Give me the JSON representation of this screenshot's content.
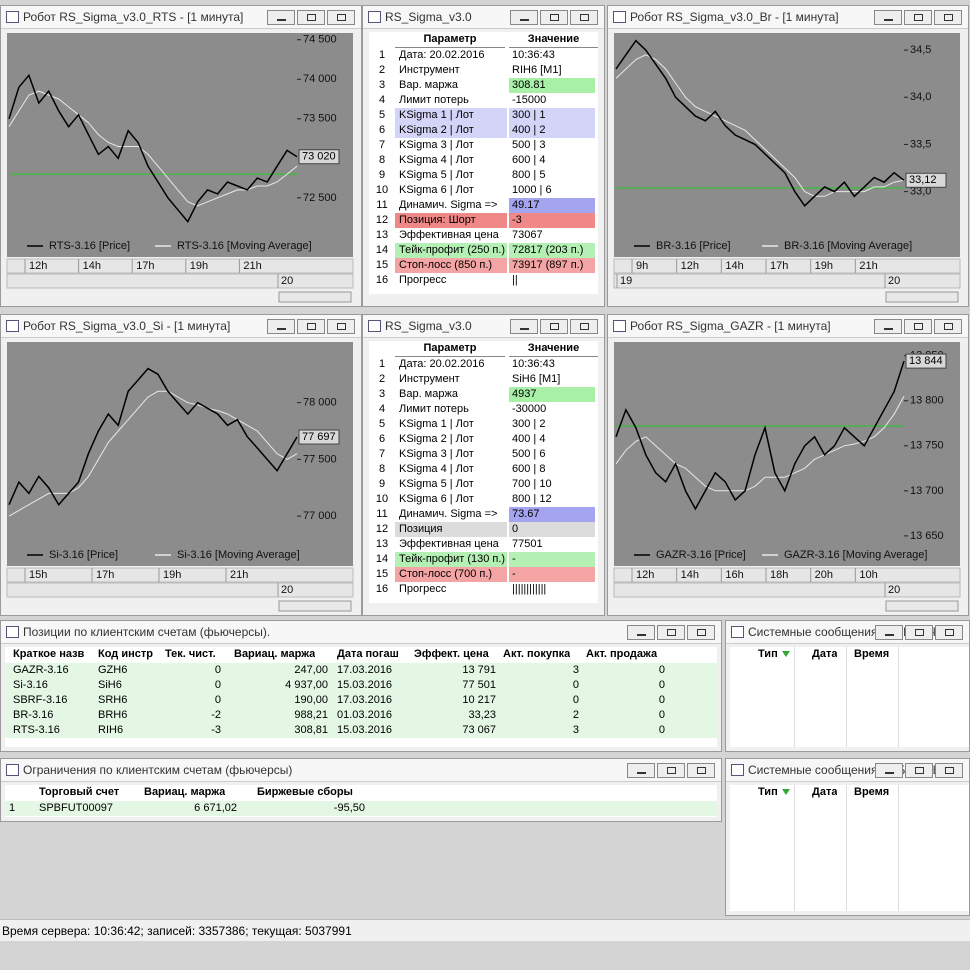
{
  "charts": [
    {
      "title": "Робот RS_Sigma_v3.0_RTS - [1 минута]",
      "ylim": [
        72030,
        74560
      ],
      "yticks": [
        {
          "value": 74500,
          "label": "74 500"
        },
        {
          "value": 74000,
          "label": "74 000"
        },
        {
          "value": 73500,
          "label": "73 500"
        },
        {
          "value": 72500,
          "label": "72 500"
        }
      ],
      "level": 72800,
      "last": {
        "value": 73020,
        "label": "73 020"
      },
      "series": [
        {
          "name": "RTS-3.16 [Price]",
          "color": "#000000",
          "values": [
            73500,
            73900,
            74050,
            73700,
            73850,
            73600,
            73400,
            73550,
            73300,
            73050,
            73150,
            73000,
            73350,
            73200,
            72900,
            72700,
            72500,
            72350,
            72200,
            72450,
            72600,
            72550,
            72700,
            72650,
            72600,
            72750,
            72700,
            72900,
            73100,
            73020
          ]
        },
        {
          "name": "RTS-3.16 [Moving Average]",
          "color": "#e8e8e8",
          "values": [
            73400,
            73600,
            73800,
            73850,
            73800,
            73750,
            73650,
            73550,
            73450,
            73300,
            73200,
            73150,
            73150,
            73150,
            73050,
            72900,
            72750,
            72600,
            72450,
            72400,
            72450,
            72500,
            72550,
            72600,
            72600,
            72650,
            72650,
            72700,
            72800,
            72900
          ]
        }
      ],
      "xtick_labels": [
        "12h",
        "14h",
        "17h",
        "19h",
        "21h"
      ],
      "date_labels": [
        "20"
      ]
    },
    {
      "title": "Робот RS_Sigma_v3.0_Br - [1 минута]",
      "ylim": [
        32.54,
        34.66
      ],
      "yticks": [
        {
          "value": 34.5,
          "label": "34,5"
        },
        {
          "value": 34.0,
          "label": "34,0"
        },
        {
          "value": 33.5,
          "label": "33,5"
        },
        {
          "value": 33.0,
          "label": "33,0"
        }
      ],
      "level": 33.04,
      "last": {
        "value": 33.12,
        "label": "33,12"
      },
      "series": [
        {
          "name": "BR-3.16 [Price]",
          "color": "#000000",
          "values": [
            34.3,
            34.45,
            34.6,
            34.5,
            34.35,
            34.2,
            34.0,
            33.9,
            33.8,
            33.75,
            33.85,
            33.7,
            33.6,
            33.55,
            33.5,
            33.4,
            33.3,
            33.2,
            33.0,
            32.85,
            32.95,
            33.05,
            33.0,
            33.1,
            32.95,
            33.05,
            33.15,
            33.1,
            33.2,
            33.12
          ]
        },
        {
          "name": "BR-3.16 [Moving Average]",
          "color": "#e8e8e8",
          "values": [
            34.2,
            34.3,
            34.4,
            34.45,
            34.4,
            34.3,
            34.15,
            34.0,
            33.9,
            33.85,
            33.8,
            33.75,
            33.7,
            33.65,
            33.55,
            33.45,
            33.35,
            33.25,
            33.15,
            33.0,
            32.95,
            32.95,
            33.0,
            33.0,
            33.0,
            33.0,
            33.05,
            33.05,
            33.1,
            33.12
          ]
        }
      ],
      "xtick_labels": [
        "9h",
        "12h",
        "14h",
        "17h",
        "19h",
        "21h"
      ],
      "date_labels": [
        "19",
        "20"
      ]
    },
    {
      "title": "Робот RS_Sigma_v3.0_Si - [1 минута]",
      "ylim": [
        76754,
        78517
      ],
      "yticks": [
        {
          "value": 78000,
          "label": "78 000"
        },
        {
          "value": 77500,
          "label": "77 500"
        },
        {
          "value": 77000,
          "label": "77 000"
        }
      ],
      "last": {
        "value": 77697,
        "label": "77 697"
      },
      "series": [
        {
          "name": "Si-3.16 [Price]",
          "color": "#000000",
          "values": [
            77100,
            77300,
            77200,
            77350,
            77250,
            77100,
            77200,
            77300,
            77550,
            77750,
            77900,
            77800,
            78100,
            78200,
            78300,
            78250,
            78100,
            78000,
            77900,
            78000,
            77950,
            77900,
            77800,
            77850,
            77700,
            77600,
            77500,
            77400,
            77550,
            77697
          ]
        },
        {
          "name": "Si-3.16 [Moving Average]",
          "color": "#e8e8e8",
          "values": [
            77000,
            77050,
            77100,
            77150,
            77200,
            77200,
            77200,
            77250,
            77350,
            77500,
            77650,
            77750,
            77850,
            77950,
            78050,
            78100,
            78100,
            78050,
            78000,
            77980,
            77950,
            77930,
            77900,
            77850,
            77800,
            77750,
            77650,
            77550,
            77500,
            77550
          ]
        }
      ],
      "xtick_labels": [
        "15h",
        "17h",
        "19h",
        "21h"
      ],
      "date_labels": [
        "20"
      ]
    },
    {
      "title": "Робот RS_Sigma_GAZR - [1 минута]",
      "ylim": [
        13641,
        13863
      ],
      "yticks": [
        {
          "value": 13850,
          "label": "13 850"
        },
        {
          "value": 13800,
          "label": "13 800"
        },
        {
          "value": 13750,
          "label": "13 750"
        },
        {
          "value": 13700,
          "label": "13 700"
        },
        {
          "value": 13650,
          "label": "13 650"
        }
      ],
      "level": 13772,
      "last": {
        "value": 13844,
        "label": "13 844"
      },
      "series": [
        {
          "name": "GAZR-3.16 [Price]",
          "color": "#000000",
          "values": [
            13760,
            13790,
            13770,
            13740,
            13720,
            13710,
            13730,
            13700,
            13680,
            13700,
            13720,
            13710,
            13690,
            13700,
            13740,
            13770,
            13720,
            13700,
            13730,
            13750,
            13760,
            13740,
            13750,
            13770,
            13760,
            13750,
            13770,
            13790,
            13810,
            13844
          ]
        },
        {
          "name": "GAZR-3.16 [Moving Average]",
          "color": "#e8e8e8",
          "values": [
            13730,
            13745,
            13755,
            13760,
            13750,
            13740,
            13730,
            13725,
            13715,
            13705,
            13700,
            13700,
            13700,
            13700,
            13705,
            13715,
            13715,
            13715,
            13720,
            13725,
            13735,
            13740,
            13745,
            13750,
            13752,
            13755,
            13760,
            13770,
            13785,
            13805
          ]
        }
      ],
      "xtick_labels": [
        "12h",
        "14h",
        "16h",
        "18h",
        "20h",
        "10h"
      ],
      "date_labels": [
        "20"
      ]
    }
  ],
  "params": [
    {
      "title": "RS_Sigma_v3.0",
      "header": [
        "Параметр",
        "Значение"
      ],
      "rows": [
        [
          "1",
          "Дата: 20.02.2016",
          "10:36:43"
        ],
        [
          "2",
          "Инструмент",
          "RIH6  [M1]"
        ],
        [
          "3",
          "Вар. маржа",
          "308.81"
        ],
        [
          "4",
          "Лимит потерь",
          "-15000"
        ],
        [
          "5",
          "KSigma 1 | Лот",
          "300 | 1"
        ],
        [
          "6",
          "KSigma 2 | Лот",
          "400 | 2"
        ],
        [
          "7",
          "KSigma 3 | Лот",
          "500 | 3"
        ],
        [
          "8",
          "KSigma 4 | Лот",
          "600 | 4"
        ],
        [
          "9",
          "KSigma 5 | Лот",
          "800 | 5"
        ],
        [
          "10",
          "KSigma 6 | Лот",
          "1000 | 6"
        ],
        [
          "11",
          "Динамич. Sigma  =>",
          "49.17"
        ],
        [
          "12",
          "Позиция: Шорт",
          "-3"
        ],
        [
          "13",
          "Эффективная цена",
          "73067"
        ],
        [
          "14",
          "Тейк-профит (250 п.)",
          "72817 (203 п.)"
        ],
        [
          "15",
          "Стоп-лосс (850 п.)",
          "73917 (897 п.)"
        ],
        [
          "16",
          "Прогресс",
          "||"
        ]
      ],
      "row_colors": [
        null,
        null,
        [
          null,
          "#a8f0a8"
        ],
        null,
        [
          "#d4d4f8",
          "#d4d4f8"
        ],
        [
          "#d4d4f8",
          "#d4d4f8"
        ],
        null,
        null,
        null,
        null,
        [
          null,
          "#a4a4f0"
        ],
        [
          "#f08888",
          "#f08888"
        ],
        null,
        [
          "#b4f0b4",
          "#b4f0b4"
        ],
        [
          "#f4a4a4",
          "#f4a4a4"
        ],
        null
      ]
    },
    {
      "title": "RS_Sigma_v3.0",
      "header": [
        "Параметр",
        "Значение"
      ],
      "rows": [
        [
          "1",
          "Дата: 20.02.2016",
          "10:36:43"
        ],
        [
          "2",
          "Инструмент",
          "SiH6  [M1]"
        ],
        [
          "3",
          "Вар. маржа",
          "4937"
        ],
        [
          "4",
          "Лимит потерь",
          "-30000"
        ],
        [
          "5",
          "KSigma 1 | Лот",
          "300 | 2"
        ],
        [
          "6",
          "KSigma 2 | Лот",
          "400 | 4"
        ],
        [
          "7",
          "KSigma 3 | Лот",
          "500 | 6"
        ],
        [
          "8",
          "KSigma 4 | Лот",
          "600 | 8"
        ],
        [
          "9",
          "KSigma 5 | Лот",
          "700 | 10"
        ],
        [
          "10",
          "KSigma 6 | Лот",
          "800 | 12"
        ],
        [
          "11",
          "Динамич. Sigma  =>",
          "73.67"
        ],
        [
          "12",
          "Позиция",
          "0"
        ],
        [
          "13",
          "Эффективная цена",
          "77501"
        ],
        [
          "14",
          "Тейк-профит (130 п.)",
          "-"
        ],
        [
          "15",
          "Стоп-лосс (700 п.)",
          "-"
        ],
        [
          "16",
          "Прогресс",
          "||||||||||||"
        ]
      ],
      "row_colors": [
        null,
        null,
        [
          null,
          "#a8f0a8"
        ],
        null,
        null,
        null,
        null,
        null,
        null,
        null,
        [
          null,
          "#a4a4f0"
        ],
        [
          "#dcdcdc",
          "#dcdcdc"
        ],
        null,
        [
          "#b4f0b4",
          "#b4f0b4"
        ],
        [
          "#f4a4a4",
          "#f4a4a4"
        ],
        null
      ]
    }
  ],
  "positions": {
    "title": "Позиции по клиентским счетам (фьючерсы).",
    "columns": [
      "Краткое назв",
      "Код инстр",
      "Тек. чист.",
      "Вариац. маржа",
      "Дата погаш",
      "Эффект. цена",
      "Акт. покупка",
      "Акт. продажа"
    ],
    "rows": [
      [
        "GAZR-3.16",
        "GZH6",
        "0",
        "247,00",
        "17.03.2016",
        "13 791",
        "3",
        "0"
      ],
      [
        "Si-3.16",
        "SiH6",
        "0",
        "4 937,00",
        "15.03.2016",
        "77 501",
        "0",
        "0"
      ],
      [
        "SBRF-3.16",
        "SRH6",
        "0",
        "190,00",
        "17.03.2016",
        "10 217",
        "0",
        "0"
      ],
      [
        "BR-3.16",
        "BRH6",
        "-2",
        "988,21",
        "01.03.2016",
        "33,23",
        "2",
        "0"
      ],
      [
        "RTS-3.16",
        "RIH6",
        "-3",
        "308,81",
        "15.03.2016",
        "73 067",
        "3",
        "0"
      ]
    ]
  },
  "limits": {
    "title": "Ограничения по клиентским счетам (фьючерсы)",
    "columns": [
      "Торговый счет",
      "Вариац. маржа",
      "Биржевые сборы"
    ],
    "rows": [
      [
        "1",
        "SPBFUT00097",
        "6 671,02",
        "-95,50"
      ]
    ]
  },
  "messages": [
    {
      "title": "Системные сообщения - КРИТИЧНЫЕ",
      "columns": [
        "Тип",
        "Дата",
        "Время"
      ]
    },
    {
      "title": "Системные сообщения - ОБЫЧНЫЕ",
      "columns": [
        "Тип",
        "Дата",
        "Время"
      ]
    }
  ],
  "status": "Время сервера: 10:36:42; записей: 3357386; текущая: 5037991"
}
